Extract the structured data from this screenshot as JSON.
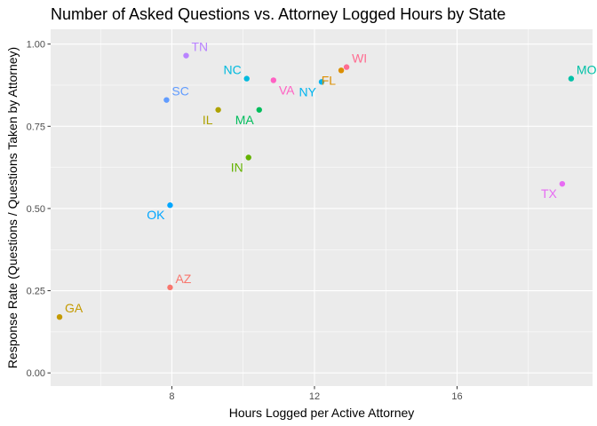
{
  "chart_data": {
    "type": "scatter",
    "title": "Number of Asked Questions vs. Attorney Logged Hours by State",
    "xlabel": "Hours Logged per Active Attorney",
    "ylabel": "Response Rate (Questions / Questions Taken by Attorney)",
    "xlim": [
      4.6,
      19.8
    ],
    "ylim": [
      -0.04,
      1.045
    ],
    "x_ticks": [
      8,
      12,
      16
    ],
    "y_ticks": [
      0.0,
      0.25,
      0.5,
      0.75,
      1.0
    ],
    "x_tick_labels": [
      "8",
      "12",
      "16"
    ],
    "y_tick_labels": [
      "0.00",
      "0.25",
      "0.50",
      "0.75",
      "1.00"
    ],
    "grid": true,
    "legend": "none",
    "background": "#ebebeb",
    "points": [
      {
        "label": "AZ",
        "x": 7.95,
        "y": 0.26,
        "color": "#F8766D",
        "label_pos": "upper-right"
      },
      {
        "label": "FL",
        "x": 12.75,
        "y": 0.92,
        "color": "#DB8E00",
        "label_pos": "lower-left"
      },
      {
        "label": "GA",
        "x": 4.85,
        "y": 0.17,
        "color": "#C49A00",
        "label_pos": "upper-right"
      },
      {
        "label": "IL",
        "x": 9.3,
        "y": 0.8,
        "color": "#AEA200",
        "label_pos": "lower-left"
      },
      {
        "label": "IN",
        "x": 10.15,
        "y": 0.655,
        "color": "#64B200",
        "label_pos": "lower-left"
      },
      {
        "label": "MA",
        "x": 10.45,
        "y": 0.8,
        "color": "#00BD5C",
        "label_pos": "lower-left"
      },
      {
        "label": "MO",
        "x": 19.2,
        "y": 0.895,
        "color": "#00C1A7",
        "label_pos": "upper-right"
      },
      {
        "label": "NC",
        "x": 10.1,
        "y": 0.895,
        "color": "#00BADE",
        "label_pos": "upper-left"
      },
      {
        "label": "NY",
        "x": 12.2,
        "y": 0.885,
        "color": "#00B4EF",
        "label_pos": "lower-left"
      },
      {
        "label": "OK",
        "x": 7.95,
        "y": 0.51,
        "color": "#00A6FF",
        "label_pos": "lower-left"
      },
      {
        "label": "SC",
        "x": 7.85,
        "y": 0.83,
        "color": "#619CFF",
        "label_pos": "upper-right"
      },
      {
        "label": "TN",
        "x": 8.4,
        "y": 0.965,
        "color": "#B983FF",
        "label_pos": "upper-right"
      },
      {
        "label": "TX",
        "x": 18.95,
        "y": 0.575,
        "color": "#E76BF3",
        "label_pos": "lower-left"
      },
      {
        "label": "VA",
        "x": 10.85,
        "y": 0.89,
        "color": "#FF61C3",
        "label_pos": "lower-right"
      },
      {
        "label": "WI",
        "x": 12.9,
        "y": 0.93,
        "color": "#FF6C91",
        "label_pos": "upper-right"
      }
    ]
  }
}
